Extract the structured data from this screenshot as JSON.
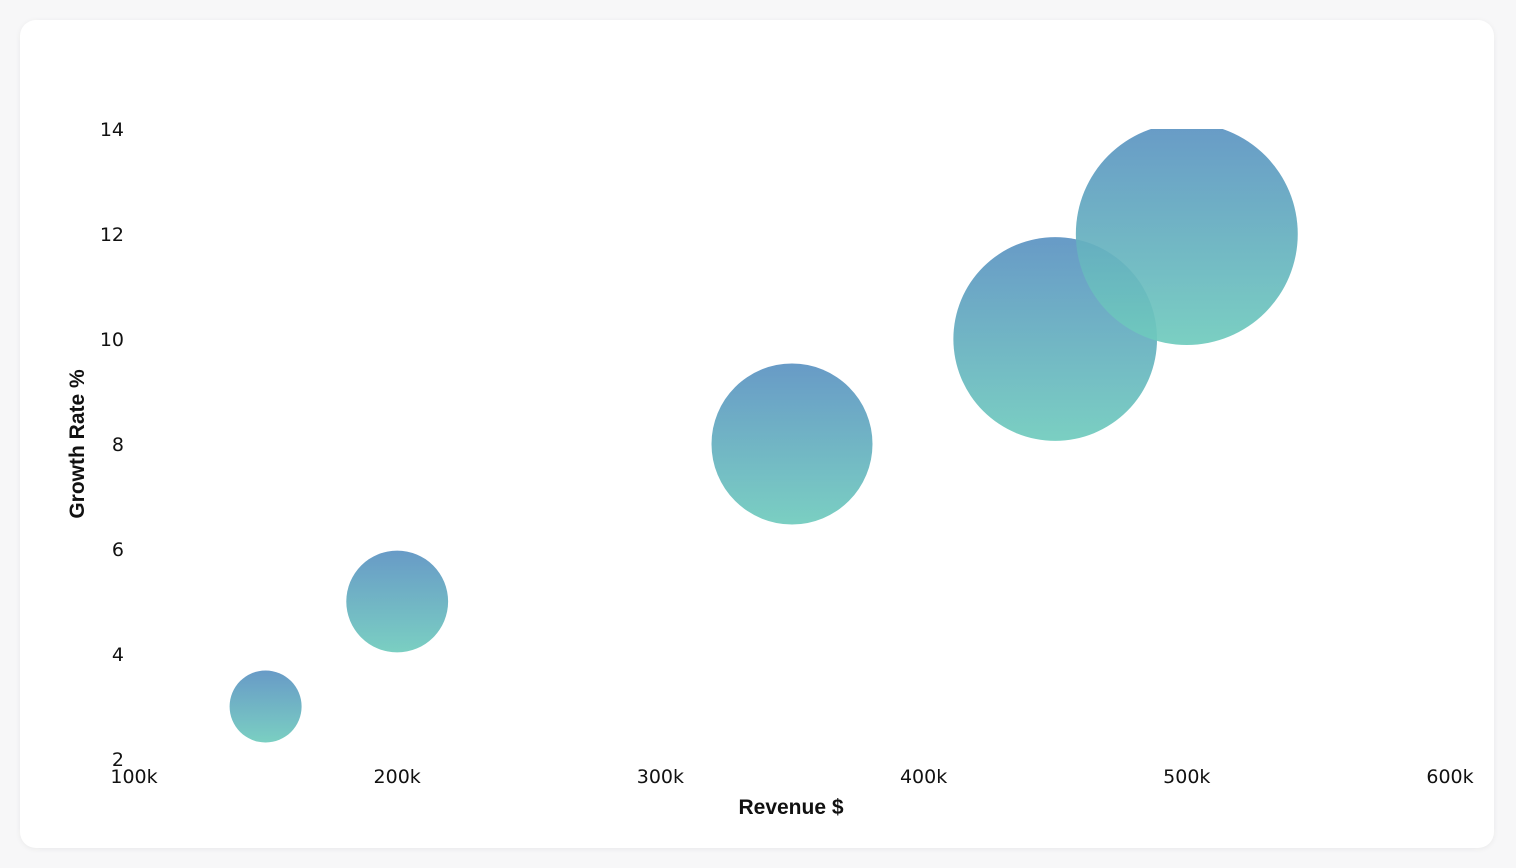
{
  "chart_data": {
    "type": "bubble",
    "xlabel": "Revenue $",
    "ylabel": "Growth Rate %",
    "xlim": [
      100000,
      600000
    ],
    "ylim": [
      2,
      14
    ],
    "x_ticks": [
      {
        "value": 100000,
        "label": "100k"
      },
      {
        "value": 200000,
        "label": "200k"
      },
      {
        "value": 300000,
        "label": "300k"
      },
      {
        "value": 400000,
        "label": "400k"
      },
      {
        "value": 500000,
        "label": "500k"
      },
      {
        "value": 600000,
        "label": "600k"
      }
    ],
    "y_ticks": [
      {
        "value": 2,
        "label": "2"
      },
      {
        "value": 4,
        "label": "4"
      },
      {
        "value": 6,
        "label": "6"
      },
      {
        "value": 8,
        "label": "8"
      },
      {
        "value": 10,
        "label": "10"
      },
      {
        "value": 12,
        "label": "12"
      },
      {
        "value": 14,
        "label": "14"
      }
    ],
    "grid": false,
    "legend": "none",
    "points": [
      {
        "x": 150000,
        "y": 3,
        "size": 1
      },
      {
        "x": 200000,
        "y": 5,
        "size": 2
      },
      {
        "x": 350000,
        "y": 8,
        "size": 5
      },
      {
        "x": 450000,
        "y": 10,
        "size": 8
      },
      {
        "x": 500000,
        "y": 12,
        "size": 9.5
      }
    ],
    "colors": {
      "bubble_top": "#5b92c2",
      "bubble_bottom": "#6fcbbd",
      "bubble_opacity": 0.92
    }
  }
}
